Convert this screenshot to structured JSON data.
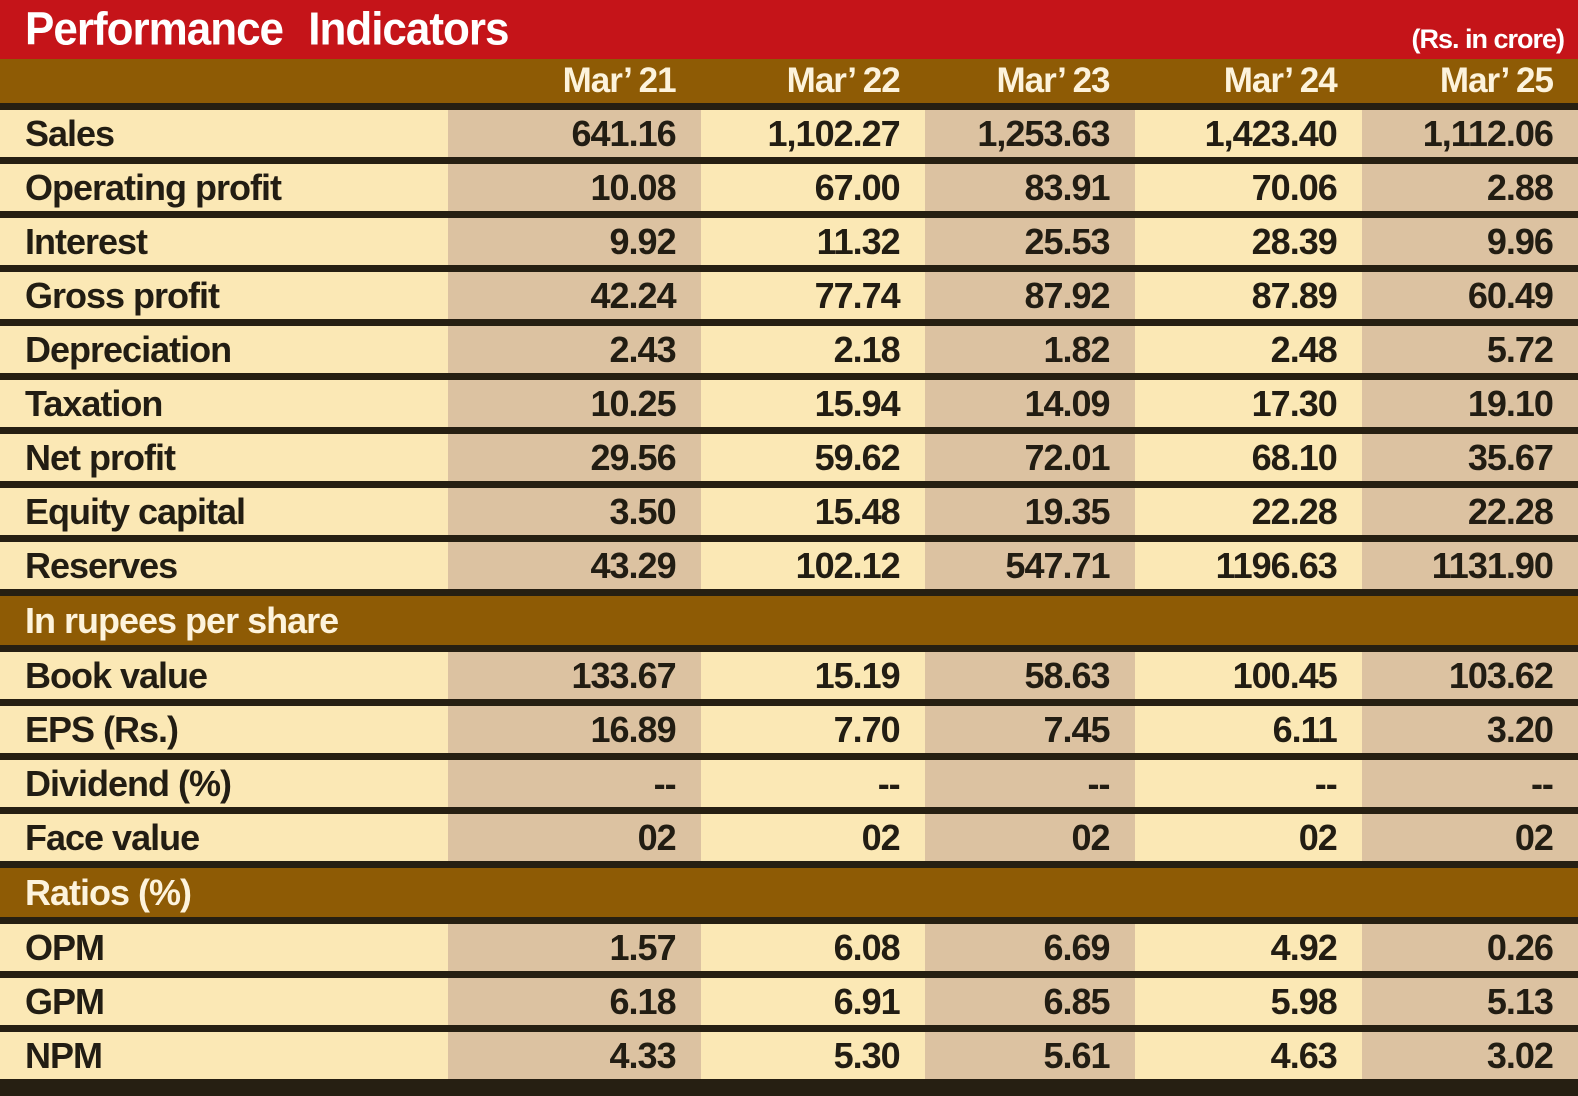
{
  "title": "Performance Indicators",
  "unit_note": "(Rs. in crore)",
  "columns": [
    "Mar’ 21",
    "Mar’ 22",
    "Mar’ 23",
    "Mar’ 24",
    "Mar’ 25"
  ],
  "sections": [
    {
      "header": null,
      "rows": [
        {
          "label": "Sales",
          "values": [
            "641.16",
            "1,102.27",
            "1,253.63",
            "1,423.40",
            "1,112.06"
          ]
        },
        {
          "label": "Operating profit",
          "values": [
            "10.08",
            "67.00",
            "83.91",
            "70.06",
            "2.88"
          ]
        },
        {
          "label": "Interest",
          "values": [
            "9.92",
            "11.32",
            "25.53",
            "28.39",
            "9.96"
          ]
        },
        {
          "label": "Gross profit",
          "values": [
            "42.24",
            "77.74",
            "87.92",
            "87.89",
            "60.49"
          ]
        },
        {
          "label": "Depreciation",
          "values": [
            "2.43",
            "2.18",
            "1.82",
            "2.48",
            "5.72"
          ]
        },
        {
          "label": "Taxation",
          "values": [
            "10.25",
            "15.94",
            "14.09",
            "17.30",
            "19.10"
          ]
        },
        {
          "label": "Net profit",
          "values": [
            "29.56",
            "59.62",
            "72.01",
            "68.10",
            "35.67"
          ]
        },
        {
          "label": "Equity capital",
          "values": [
            "3.50",
            "15.48",
            "19.35",
            "22.28",
            "22.28"
          ]
        },
        {
          "label": "Reserves",
          "values": [
            "43.29",
            "102.12",
            "547.71",
            "1196.63",
            "1131.90"
          ]
        }
      ]
    },
    {
      "header": "In rupees per share",
      "rows": [
        {
          "label": "Book value",
          "values": [
            "133.67",
            "15.19",
            "58.63",
            "100.45",
            "103.62"
          ]
        },
        {
          "label": "EPS (Rs.)",
          "values": [
            "16.89",
            "7.70",
            "7.45",
            "6.11",
            "3.20"
          ]
        },
        {
          "label": "Dividend (%)",
          "values": [
            "--",
            "--",
            "--",
            "--",
            "--"
          ]
        },
        {
          "label": "Face value",
          "values": [
            "02",
            "02",
            "02",
            "02",
            "02"
          ]
        }
      ]
    },
    {
      "header": "Ratios (%)",
      "rows": [
        {
          "label": "OPM",
          "values": [
            "1.57",
            "6.08",
            "6.69",
            "4.92",
            "0.26"
          ]
        },
        {
          "label": "GPM",
          "values": [
            "6.18",
            "6.91",
            "6.85",
            "5.98",
            "5.13"
          ]
        },
        {
          "label": "NPM",
          "values": [
            "4.33",
            "5.30",
            "5.61",
            "4.63",
            "3.02"
          ]
        }
      ]
    }
  ],
  "colors": {
    "red": "#c51419",
    "brown": "#8e5b05",
    "cream": "#fbe8b5",
    "tan": "#dcc2a1",
    "sep": "#261f12",
    "ink": "#221d13",
    "header-text": "#fdf3dc"
  },
  "chart_data": {
    "type": "table",
    "title": "Performance Indicators",
    "unit": "Rs. in crore",
    "columns": [
      "Mar' 21",
      "Mar' 22",
      "Mar' 23",
      "Mar' 24",
      "Mar' 25"
    ],
    "rows": [
      {
        "label": "Sales",
        "values": [
          641.16,
          1102.27,
          1253.63,
          1423.4,
          1112.06
        ]
      },
      {
        "label": "Operating profit",
        "values": [
          10.08,
          67.0,
          83.91,
          70.06,
          2.88
        ]
      },
      {
        "label": "Interest",
        "values": [
          9.92,
          11.32,
          25.53,
          28.39,
          9.96
        ]
      },
      {
        "label": "Gross profit",
        "values": [
          42.24,
          77.74,
          87.92,
          87.89,
          60.49
        ]
      },
      {
        "label": "Depreciation",
        "values": [
          2.43,
          2.18,
          1.82,
          2.48,
          5.72
        ]
      },
      {
        "label": "Taxation",
        "values": [
          10.25,
          15.94,
          14.09,
          17.3,
          19.1
        ]
      },
      {
        "label": "Net profit",
        "values": [
          29.56,
          59.62,
          72.01,
          68.1,
          35.67
        ]
      },
      {
        "label": "Equity capital",
        "values": [
          3.5,
          15.48,
          19.35,
          22.28,
          22.28
        ]
      },
      {
        "label": "Reserves",
        "values": [
          43.29,
          102.12,
          547.71,
          1196.63,
          1131.9
        ]
      },
      {
        "label": "Book value (Rs/share)",
        "values": [
          133.67,
          15.19,
          58.63,
          100.45,
          103.62
        ]
      },
      {
        "label": "EPS (Rs.)",
        "values": [
          16.89,
          7.7,
          7.45,
          6.11,
          3.2
        ]
      },
      {
        "label": "Dividend (%)",
        "values": [
          null,
          null,
          null,
          null,
          null
        ]
      },
      {
        "label": "Face value",
        "values": [
          2,
          2,
          2,
          2,
          2
        ]
      },
      {
        "label": "OPM (%)",
        "values": [
          1.57,
          6.08,
          6.69,
          4.92,
          0.26
        ]
      },
      {
        "label": "GPM (%)",
        "values": [
          6.18,
          6.91,
          6.85,
          5.98,
          5.13
        ]
      },
      {
        "label": "NPM (%)",
        "values": [
          4.33,
          5.3,
          5.61,
          4.63,
          3.02
        ]
      }
    ]
  }
}
